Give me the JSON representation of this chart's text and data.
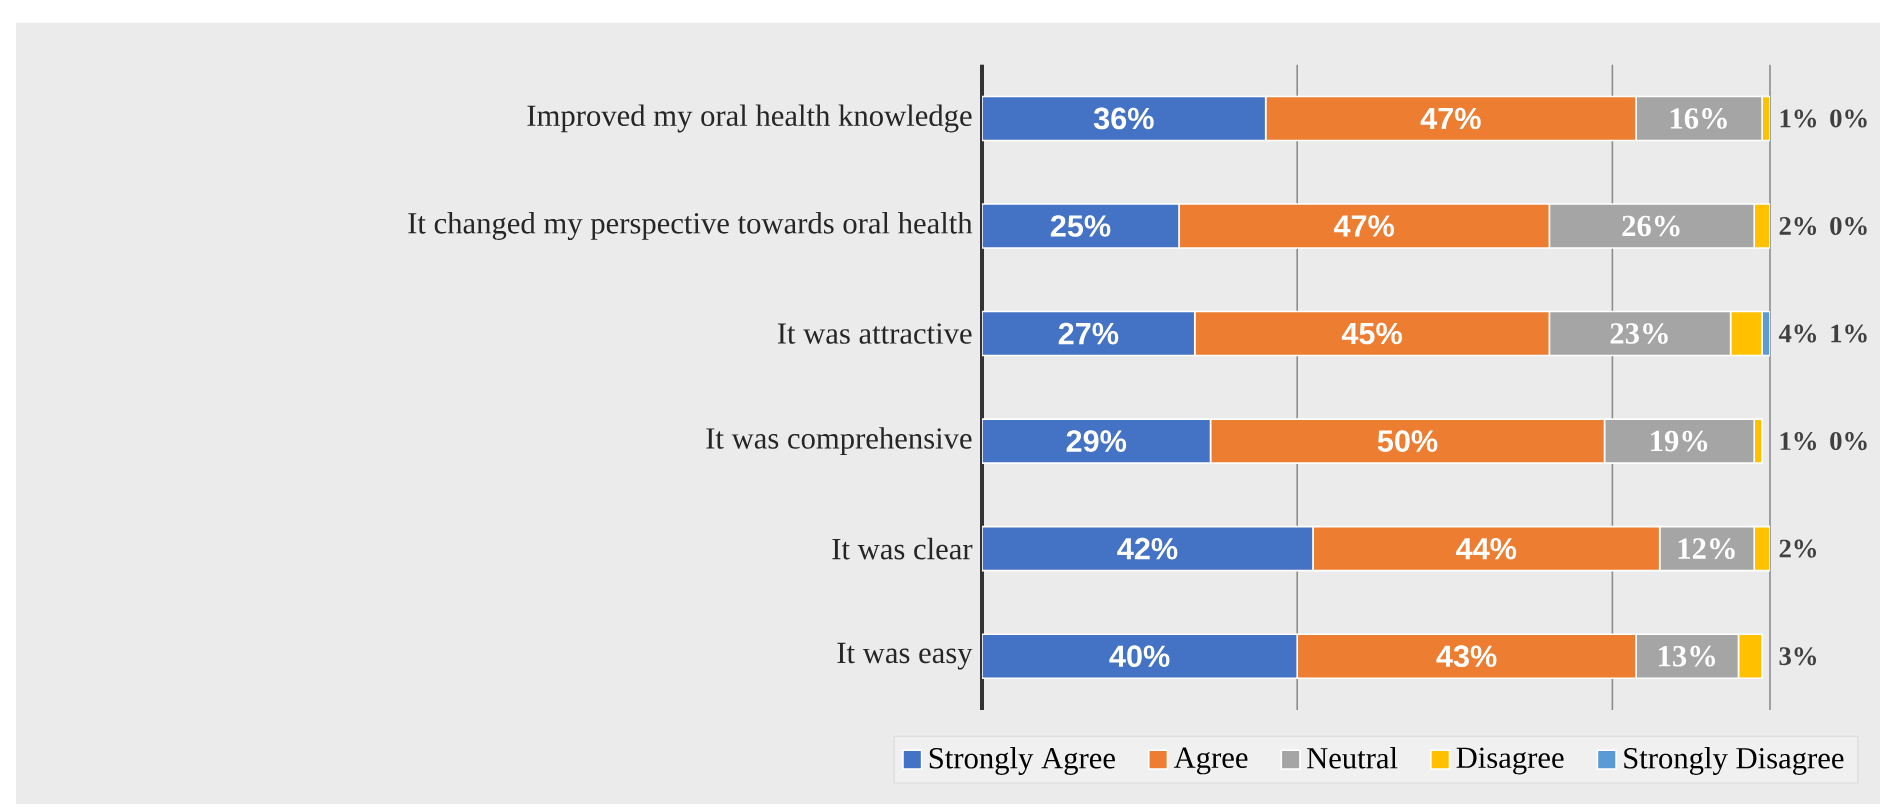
{
  "chart_data": {
    "type": "bar",
    "orientation": "horizontal",
    "stacked": true,
    "categories": [
      "Improved my oral health knowledge",
      "It changed my perspective towards oral health",
      "It was attractive",
      "It was comprehensive",
      "It was clear",
      "It was easy"
    ],
    "series": [
      {
        "name": "Strongly Agree",
        "color": "#4472c4",
        "values": [
          36,
          25,
          27,
          29,
          42,
          40
        ],
        "value_labels": [
          "36%",
          "25%",
          "27%",
          "29%",
          "42%",
          "40%"
        ]
      },
      {
        "name": "Agree",
        "color": "#ed7d31",
        "values": [
          47,
          47,
          45,
          50,
          44,
          43
        ],
        "value_labels": [
          "47%",
          "47%",
          "45%",
          "50%",
          "44%",
          "43%"
        ]
      },
      {
        "name": "Neutral",
        "color": "#a5a5a5",
        "values": [
          16,
          26,
          23,
          19,
          12,
          13
        ],
        "value_labels": [
          "16%",
          "26%",
          "23%",
          "19%",
          "12%",
          "13%"
        ]
      },
      {
        "name": "Disagree",
        "color": "#ffc000",
        "values": [
          1,
          2,
          4,
          1,
          2,
          3
        ],
        "value_labels": [
          "1%",
          "2%",
          "4%",
          "1%",
          "2%",
          "3%"
        ]
      },
      {
        "name": "Strongly Disagree",
        "color": "#5b9bd5",
        "values": [
          0,
          0,
          1,
          0,
          0,
          0
        ],
        "value_labels": [
          "0%",
          "0%",
          "1%",
          "0%",
          null,
          null
        ]
      }
    ],
    "xlim": [
      0,
      100
    ],
    "xticks": [
      {
        "value": 0,
        "label": null
      },
      {
        "value": 40,
        "label": null
      },
      {
        "value": 80,
        "label": null
      },
      {
        "value": 100,
        "label": null
      }
    ],
    "tick_labels": "y",
    "grid": "x",
    "legend": "bottom"
  }
}
